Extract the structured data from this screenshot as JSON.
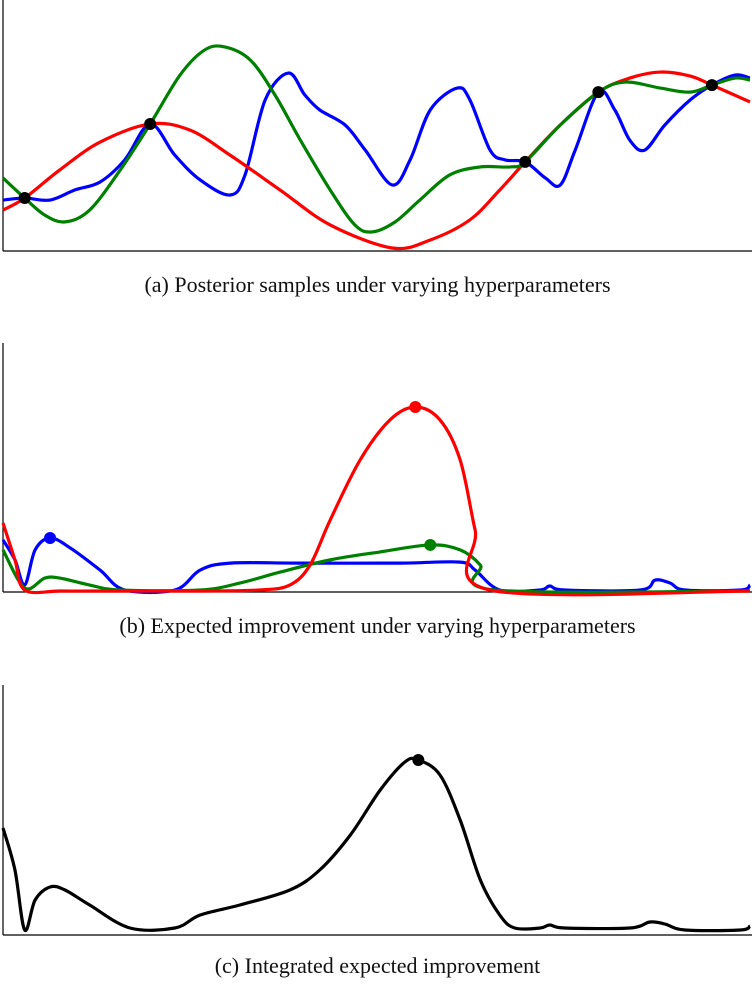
{
  "chart_data": [
    {
      "type": "line",
      "caption": "(a) Posterior samples under varying hyperparameters",
      "xlim": [
        0,
        100
      ],
      "ylim": [
        0,
        100
      ],
      "grid": false,
      "axis_ticks": false,
      "series": [
        {
          "color": "#0000ff",
          "x": [
            0,
            2.9,
            6.3,
            9.6,
            13.0,
            16.3,
            19.7,
            23.0,
            26.4,
            30.4,
            32.4,
            35.1,
            38.2,
            40.4,
            42.4,
            45.8,
            48.5,
            52.1,
            54.5,
            57.2,
            60.8,
            62.5,
            65.2,
            67.2,
            69.9,
            72.6,
            74.6,
            76.6,
            79.7,
            81.9,
            83.9,
            85.9,
            88.6,
            92.0,
            94.9,
            98.0,
            100
          ],
          "y": [
            20.3,
            21.1,
            20.3,
            24.3,
            27.5,
            36.3,
            50.6,
            38.2,
            28.3,
            22.3,
            30.3,
            60.2,
            70.9,
            62.2,
            56.2,
            50.2,
            40.2,
            26.3,
            36.3,
            56.2,
            64.9,
            60.2,
            40.2,
            36.3,
            35.5,
            29.1,
            26.3,
            40.2,
            63.3,
            56.2,
            44.2,
            40.2,
            50.2,
            60.2,
            66.1,
            70.1,
            68.9
          ]
        },
        {
          "color": "#ff0000",
          "x": [
            0,
            2.9,
            7.6,
            13.0,
            19.7,
            25.0,
            30.4,
            37.1,
            43.8,
            52.1,
            57.2,
            62.5,
            66.5,
            69.9,
            74.6,
            79.7,
            83.9,
            88.0,
            92.0,
            94.9,
            100
          ],
          "y": [
            16.3,
            21.1,
            32.3,
            43.4,
            50.6,
            48.2,
            38.2,
            24.3,
            10.4,
            1.2,
            4.4,
            12.4,
            24.3,
            35.5,
            50.2,
            63.3,
            68.9,
            71.3,
            69.7,
            66.1,
            59.4
          ]
        },
        {
          "color": "#008000",
          "x": [
            0,
            2.9,
            5.6,
            8.3,
            11.6,
            15.7,
            19.7,
            23.7,
            27.0,
            29.7,
            33.1,
            36.4,
            39.8,
            43.8,
            47.1,
            49.4,
            52.5,
            55.8,
            59.8,
            63.9,
            67.9,
            69.9,
            74.6,
            79.7,
            83.3,
            88.0,
            92.0,
            94.9,
            98.0,
            100
          ],
          "y": [
            29.1,
            21.1,
            14.3,
            11.6,
            16.3,
            32.3,
            50.6,
            70.1,
            80.1,
            81.3,
            76.1,
            62.2,
            44.2,
            24.3,
            10.4,
            7.6,
            11.6,
            20.3,
            30.3,
            33.5,
            33.5,
            35.5,
            50.2,
            63.3,
            67.3,
            64.9,
            63.3,
            66.1,
            68.9,
            68.1
          ]
        }
      ],
      "markers": [
        {
          "color": "#000000",
          "x": 2.9,
          "y": 21.1
        },
        {
          "color": "#000000",
          "x": 19.7,
          "y": 50.6
        },
        {
          "color": "#000000",
          "x": 69.9,
          "y": 35.5
        },
        {
          "color": "#000000",
          "x": 79.7,
          "y": 63.3
        },
        {
          "color": "#000000",
          "x": 94.9,
          "y": 66.1
        }
      ]
    },
    {
      "type": "line",
      "caption": "(b) Expected improvement under varying hyperparameters",
      "xlim": [
        0,
        100
      ],
      "ylim": [
        0,
        100
      ],
      "grid": false,
      "axis_ticks": false,
      "series": [
        {
          "color": "#0000ff",
          "x": [
            0,
            1.6,
            2.9,
            4.3,
            6.3,
            9.0,
            13.0,
            16.3,
            23.0,
            26.4,
            30.4,
            39.8,
            53.1,
            61.2,
            63.2,
            66.5,
            71.9,
            73.2,
            75.2,
            85.3,
            87.3,
            89.3,
            91.3,
            98.7,
            100
          ],
          "y": [
            20.9,
            12.9,
            2.8,
            16.9,
            21.7,
            17.7,
            8.8,
            0.8,
            0.8,
            8.8,
            11.6,
            11.6,
            11.6,
            12.0,
            8.8,
            0.8,
            0.8,
            2.4,
            0.8,
            0.8,
            4.8,
            3.6,
            0.8,
            0.8,
            2.8
          ]
        },
        {
          "color": "#008000",
          "x": [
            0,
            2.9,
            5.6,
            7.6,
            11.6,
            15.7,
            26.4,
            31.7,
            37.1,
            43.8,
            50.5,
            57.2,
            61.2,
            63.9,
            65.9,
            100
          ],
          "y": [
            16.9,
            1.6,
            5.6,
            5.6,
            2.8,
            0.8,
            0.8,
            3.6,
            8.0,
            12.9,
            16.1,
            18.9,
            16.9,
            10.8,
            0.8,
            0.4
          ]
        },
        {
          "color": "#ff0000",
          "x": [
            0,
            1.6,
            2.9,
            7.6,
            13.0,
            26.4,
            34.4,
            38.4,
            41.1,
            43.8,
            47.8,
            51.8,
            55.2,
            58.5,
            61.2,
            63.2,
            65.2,
            100
          ],
          "y": [
            27.7,
            12.9,
            0.8,
            0.4,
            0.4,
            0.4,
            0.8,
            2.8,
            10.8,
            28.9,
            53.0,
            69.1,
            74.3,
            69.1,
            53.0,
            24.9,
            0.8,
            0.4
          ]
        }
      ],
      "markers": [
        {
          "color": "#ff0000",
          "x": 55.2,
          "y": 74.3
        },
        {
          "color": "#008000",
          "x": 57.2,
          "y": 18.9
        },
        {
          "color": "#0000ff",
          "x": 6.3,
          "y": 21.7
        }
      ]
    },
    {
      "type": "line",
      "caption": "(c) Integrated expected improvement",
      "xlim": [
        0,
        100
      ],
      "ylim": [
        0,
        100
      ],
      "grid": false,
      "axis_ticks": false,
      "series": [
        {
          "color": "#000000",
          "x": [
            0,
            1.6,
            2.9,
            4.3,
            6.3,
            8.3,
            11.6,
            17.0,
            23.0,
            26.4,
            31.7,
            38.4,
            42.4,
            46.5,
            50.5,
            53.8,
            55.6,
            58.5,
            61.2,
            63.9,
            66.5,
            68.5,
            71.9,
            73.2,
            75.2,
            83.9,
            86.6,
            88.6,
            91.3,
            98.7,
            100
          ],
          "y": [
            42.8,
            26,
            2,
            14,
            19.2,
            18,
            12,
            2.8,
            2.8,
            8,
            12,
            18,
            26,
            40,
            58,
            69.2,
            70,
            64,
            46,
            22,
            8,
            2.8,
            2.8,
            4,
            2.8,
            2.8,
            5.2,
            4.4,
            2,
            2,
            3.6
          ]
        }
      ],
      "markers": [
        {
          "color": "#000000",
          "x": 55.6,
          "y": 70
        }
      ]
    }
  ]
}
